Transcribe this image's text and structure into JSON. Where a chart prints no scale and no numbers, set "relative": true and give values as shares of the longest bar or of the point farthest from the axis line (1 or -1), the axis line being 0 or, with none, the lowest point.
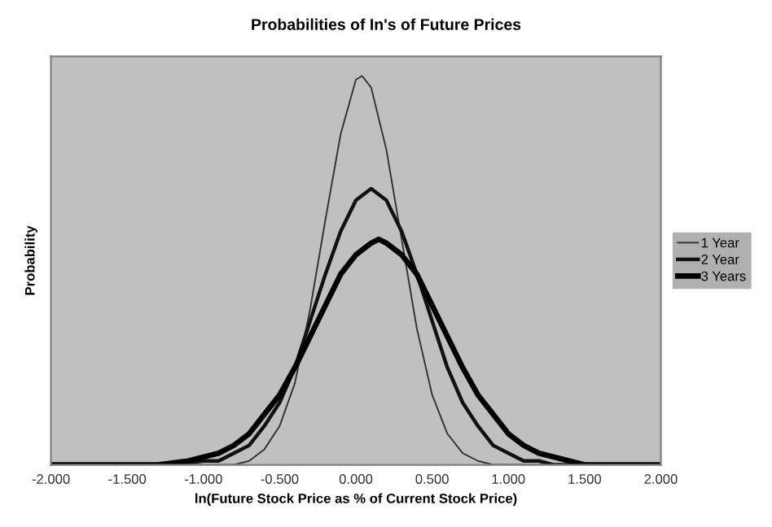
{
  "chart_data": {
    "type": "line",
    "title": "Probabilities of In's of Future Prices",
    "xlabel": "ln(Future Stock Price as % of Current Stock Price)",
    "ylabel": "Probability",
    "relative": true,
    "xlim": [
      -2,
      2
    ],
    "xticks": [
      {
        "value": -2,
        "label": "-2.000"
      },
      {
        "value": -1.5,
        "label": "-1.500"
      },
      {
        "value": -1,
        "label": "-1.000"
      },
      {
        "value": -0.5,
        "label": "-0.500"
      },
      {
        "value": 0,
        "label": "0.000"
      },
      {
        "value": 0.5,
        "label": "0.500"
      },
      {
        "value": 1,
        "label": "1.000"
      },
      {
        "value": 1.5,
        "label": "1.500"
      },
      {
        "value": 2,
        "label": "2.000"
      }
    ],
    "legend": "right",
    "grid": false,
    "marker": "none",
    "line_style": "solid",
    "series": [
      {
        "name": "1 Year",
        "color": "#333333",
        "x": [
          -2,
          -1.2,
          -0.9,
          -0.8,
          -0.7,
          -0.6,
          -0.5,
          -0.4,
          -0.3,
          -0.2,
          -0.1,
          0,
          0.04,
          0.1,
          0.2,
          0.3,
          0.4,
          0.5,
          0.6,
          0.7,
          0.8,
          0.9,
          1.1,
          2
        ],
        "values": [
          0,
          0,
          0,
          0,
          0.01,
          0.04,
          0.1,
          0.21,
          0.4,
          0.63,
          0.85,
          0.99,
          1,
          0.97,
          0.81,
          0.58,
          0.35,
          0.18,
          0.08,
          0.03,
          0.01,
          0,
          0,
          0
        ]
      },
      {
        "name": "2 Year",
        "color": "#111111",
        "x": [
          -2,
          -1.4,
          -1.2,
          -1.0,
          -0.9,
          -0.8,
          -0.7,
          -0.6,
          -0.5,
          -0.4,
          -0.3,
          -0.2,
          -0.1,
          0,
          0.1,
          0.2,
          0.3,
          0.4,
          0.5,
          0.6,
          0.7,
          0.8,
          0.9,
          1.0,
          1.1,
          1.2,
          1.3,
          1.5,
          2
        ],
        "values": [
          0,
          0,
          0,
          0.01,
          0.01,
          0.03,
          0.05,
          0.1,
          0.16,
          0.25,
          0.37,
          0.49,
          0.6,
          0.68,
          0.71,
          0.68,
          0.6,
          0.49,
          0.37,
          0.25,
          0.16,
          0.1,
          0.05,
          0.03,
          0.01,
          0.01,
          0,
          0,
          0
        ]
      },
      {
        "name": "3 Years",
        "color": "#000000",
        "x": [
          -2,
          -1.6,
          -1.3,
          -1.1,
          -1.0,
          -0.9,
          -0.8,
          -0.7,
          -0.6,
          -0.5,
          -0.4,
          -0.3,
          -0.2,
          -0.1,
          0,
          0.1,
          0.15,
          0.2,
          0.3,
          0.4,
          0.5,
          0.6,
          0.7,
          0.8,
          0.9,
          1.0,
          1.1,
          1.2,
          1.3,
          1.4,
          1.5,
          1.7,
          2
        ],
        "values": [
          0,
          0,
          0,
          0.01,
          0.02,
          0.03,
          0.05,
          0.08,
          0.13,
          0.18,
          0.25,
          0.33,
          0.41,
          0.49,
          0.54,
          0.57,
          0.58,
          0.57,
          0.54,
          0.49,
          0.41,
          0.33,
          0.25,
          0.18,
          0.13,
          0.08,
          0.05,
          0.03,
          0.02,
          0.01,
          0,
          0,
          0
        ]
      }
    ]
  }
}
